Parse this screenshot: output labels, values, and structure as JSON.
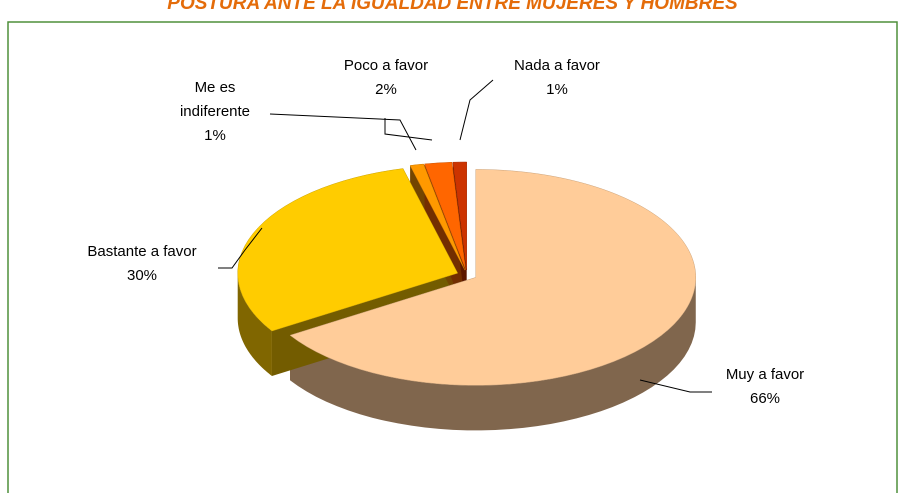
{
  "chart_data": {
    "type": "pie3d",
    "title": "POSTURA ANTE LA IGUALDAD ENTRE MUJERES Y HOMBRES",
    "categories": [
      "Muy a favor",
      "Bastante a favor",
      "Me es indiferente",
      "Poco a favor",
      "Nada a favor"
    ],
    "values": [
      66,
      30,
      1,
      2,
      1
    ],
    "value_labels": [
      "66%",
      "30%",
      "1%",
      "2%",
      "1%"
    ],
    "colors": [
      "#FFCC99",
      "#FFCC00",
      "#FF9900",
      "#FF6600",
      "#CC3300"
    ]
  }
}
